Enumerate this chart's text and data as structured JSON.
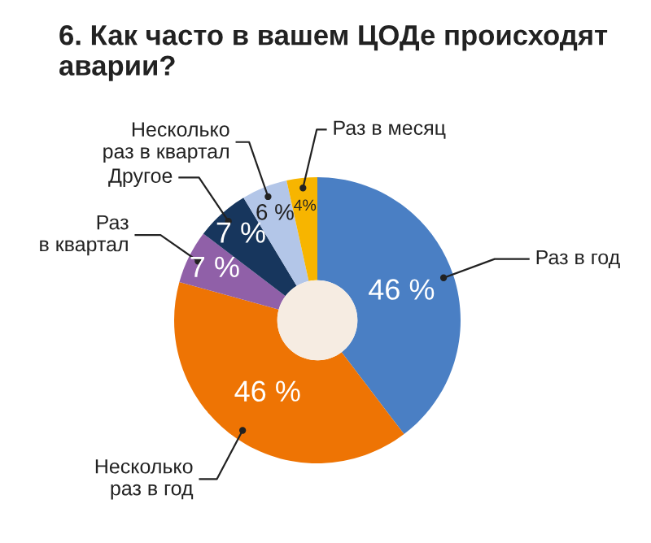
{
  "chart_data": {
    "type": "donut",
    "title": "6. Как часто в вашем ЦОДе происходят аварии?",
    "categories": [
      "Раз в год",
      "Несколько\nраз в год",
      "Раз\nв квартал",
      "Другое",
      "Несколько\nраз в квартал",
      "Раз в месяц"
    ],
    "values": [
      46,
      46,
      7,
      7,
      6,
      4
    ],
    "value_labels": [
      "46 %",
      "46 %",
      "7 %",
      "7 %",
      "6 %",
      "4%"
    ],
    "colors": [
      "#4a7fc4",
      "#ee7404",
      "#9060a8",
      "#17365d",
      "#b3c6e8",
      "#f7b500"
    ],
    "legend": false
  }
}
